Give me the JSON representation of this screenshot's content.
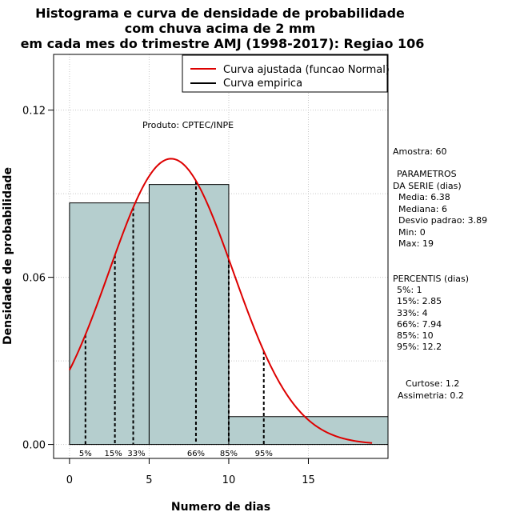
{
  "chart_data": {
    "type": "bar",
    "title_lines": [
      "Histograma e curva de densidade de probabilidade",
      "com chuva acima de 2 mm",
      "em cada mes do trimestre AMJ (1998-2017): Regiao 106"
    ],
    "xlabel": "Numero de dias",
    "ylabel": "Densidade de probabilidade",
    "xlim": [
      -1,
      20
    ],
    "ylim": [
      -0.005,
      0.14
    ],
    "x_ticks": [
      0,
      5,
      10,
      15
    ],
    "x_tick_labels": [
      "0",
      "5",
      "10",
      "15"
    ],
    "y_ticks": [
      0.0,
      0.06,
      0.12
    ],
    "y_tick_labels": [
      "0.00",
      "0.06",
      "0.12"
    ],
    "grid": true,
    "bins": [
      {
        "x0": 0,
        "x1": 5,
        "density": 0.0867
      },
      {
        "x0": 5,
        "x1": 10,
        "density": 0.0933
      },
      {
        "x0": 10,
        "x1": 20,
        "density": 0.01
      }
    ],
    "normal_curve": {
      "mean": 6.38,
      "sd": 3.89,
      "x_from": 0,
      "x_to": 19,
      "color": "#dd0000"
    },
    "percentiles": [
      {
        "label": "5%",
        "x": 1
      },
      {
        "label": "15%",
        "x": 2.85
      },
      {
        "label": "33%",
        "x": 4
      },
      {
        "label": "66%",
        "x": 7.94
      },
      {
        "label": "85%",
        "x": 10
      },
      {
        "label": "95%",
        "x": 12.2
      }
    ],
    "legend": {
      "placement": "top-right",
      "entries": [
        {
          "label": "Curva ajustada (funcao Normal)",
          "color": "#dd0000"
        },
        {
          "label": "Curva empirica",
          "color": "#000000"
        }
      ]
    },
    "annotation": "Produto: CPTEC/INPE",
    "bar_color": "#b5cece"
  },
  "side_panel": {
    "sample": "Amostra: 60",
    "params_title_1": "PARAMETROS",
    "params_title_2": "DA SERIE (dias)",
    "media": "Media: 6.38",
    "mediana": "Mediana: 6",
    "desvio": "Desvio padrao: 3.89",
    "min": "Min: 0",
    "max": "Max: 19",
    "percentis_title": "PERCENTIS (dias)",
    "p5": "5%: 1",
    "p15": "15%: 2.85",
    "p33": "33%: 4",
    "p66": "66%: 7.94",
    "p85": "85%: 10",
    "p95": "95%: 12.2",
    "curtose": "Curtose: 1.2",
    "assimetria": "Assimetria: 0.2"
  }
}
